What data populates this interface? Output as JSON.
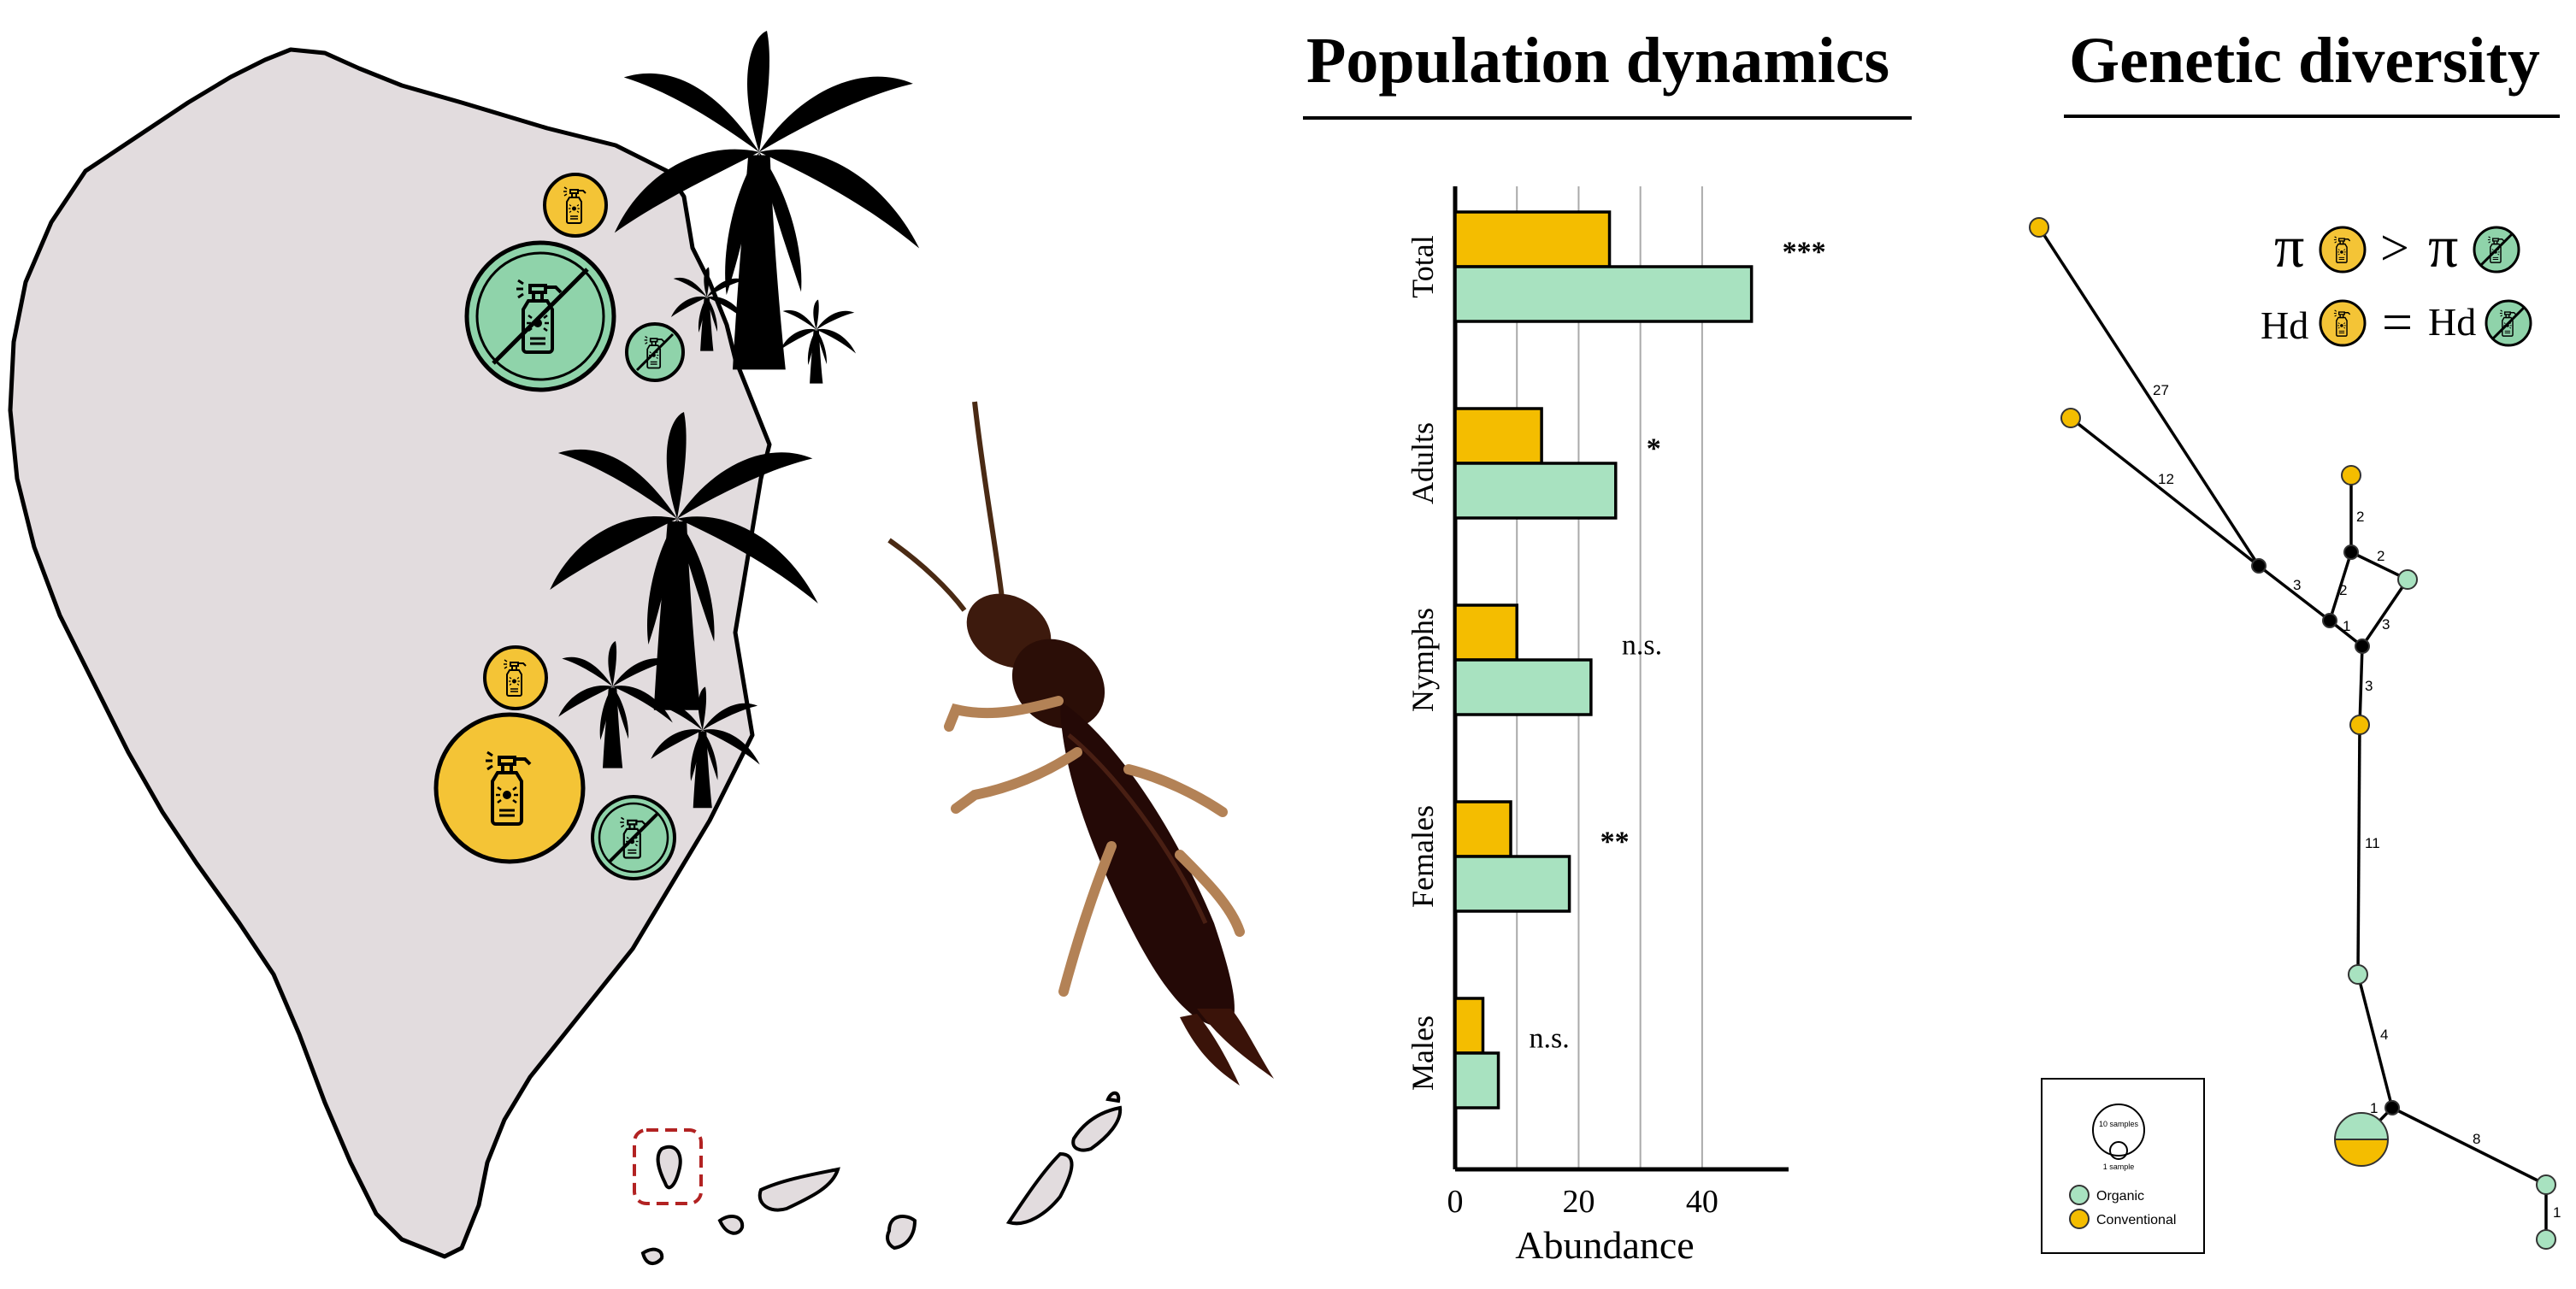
{
  "headings": {
    "population": "Population dynamics",
    "genetic": "Genetic diversity"
  },
  "chart_data": {
    "type": "bar",
    "orientation": "horizontal",
    "categories": [
      "Total",
      "Adults",
      "Nymphs",
      "Females",
      "Males"
    ],
    "series": [
      {
        "name": "Conventional",
        "color": "#f4bd00",
        "values": [
          25,
          14,
          10,
          9,
          4.5
        ]
      },
      {
        "name": "Organic",
        "color": "#a8e2c0",
        "values": [
          48,
          26,
          22,
          18.5,
          7
        ]
      }
    ],
    "significance": [
      "***",
      "*",
      "n.s.",
      "**",
      "n.s."
    ],
    "xlabel": "Abundance",
    "ylabel": "",
    "xticks": [
      0,
      20,
      40
    ],
    "xlim": [
      0,
      54
    ],
    "grid": "vertical",
    "title": ""
  },
  "network": {
    "edge_labels": [
      "27",
      "12",
      "3",
      "2",
      "2",
      "2",
      "1",
      "3",
      "3",
      "11",
      "4",
      "1",
      "8",
      "1"
    ],
    "equations": {
      "pi_symbol": "π",
      "pi_relation": ">",
      "hd_symbol": "Hd",
      "hd_relation": "="
    },
    "legend": {
      "size_large": "10 samples",
      "size_small": "1 sample",
      "organic": "Organic",
      "conventional": "Conventional"
    }
  },
  "colors": {
    "organic": "#a8e2c0",
    "conventional": "#f4bd00",
    "island_fill": "#e2dcde",
    "outline": "#000000",
    "highlight_box": "#b22222"
  },
  "icons": [
    "palm-tree-icon",
    "pesticide-spray-icon",
    "no-pesticide-icon",
    "earwig-insect-icon"
  ]
}
